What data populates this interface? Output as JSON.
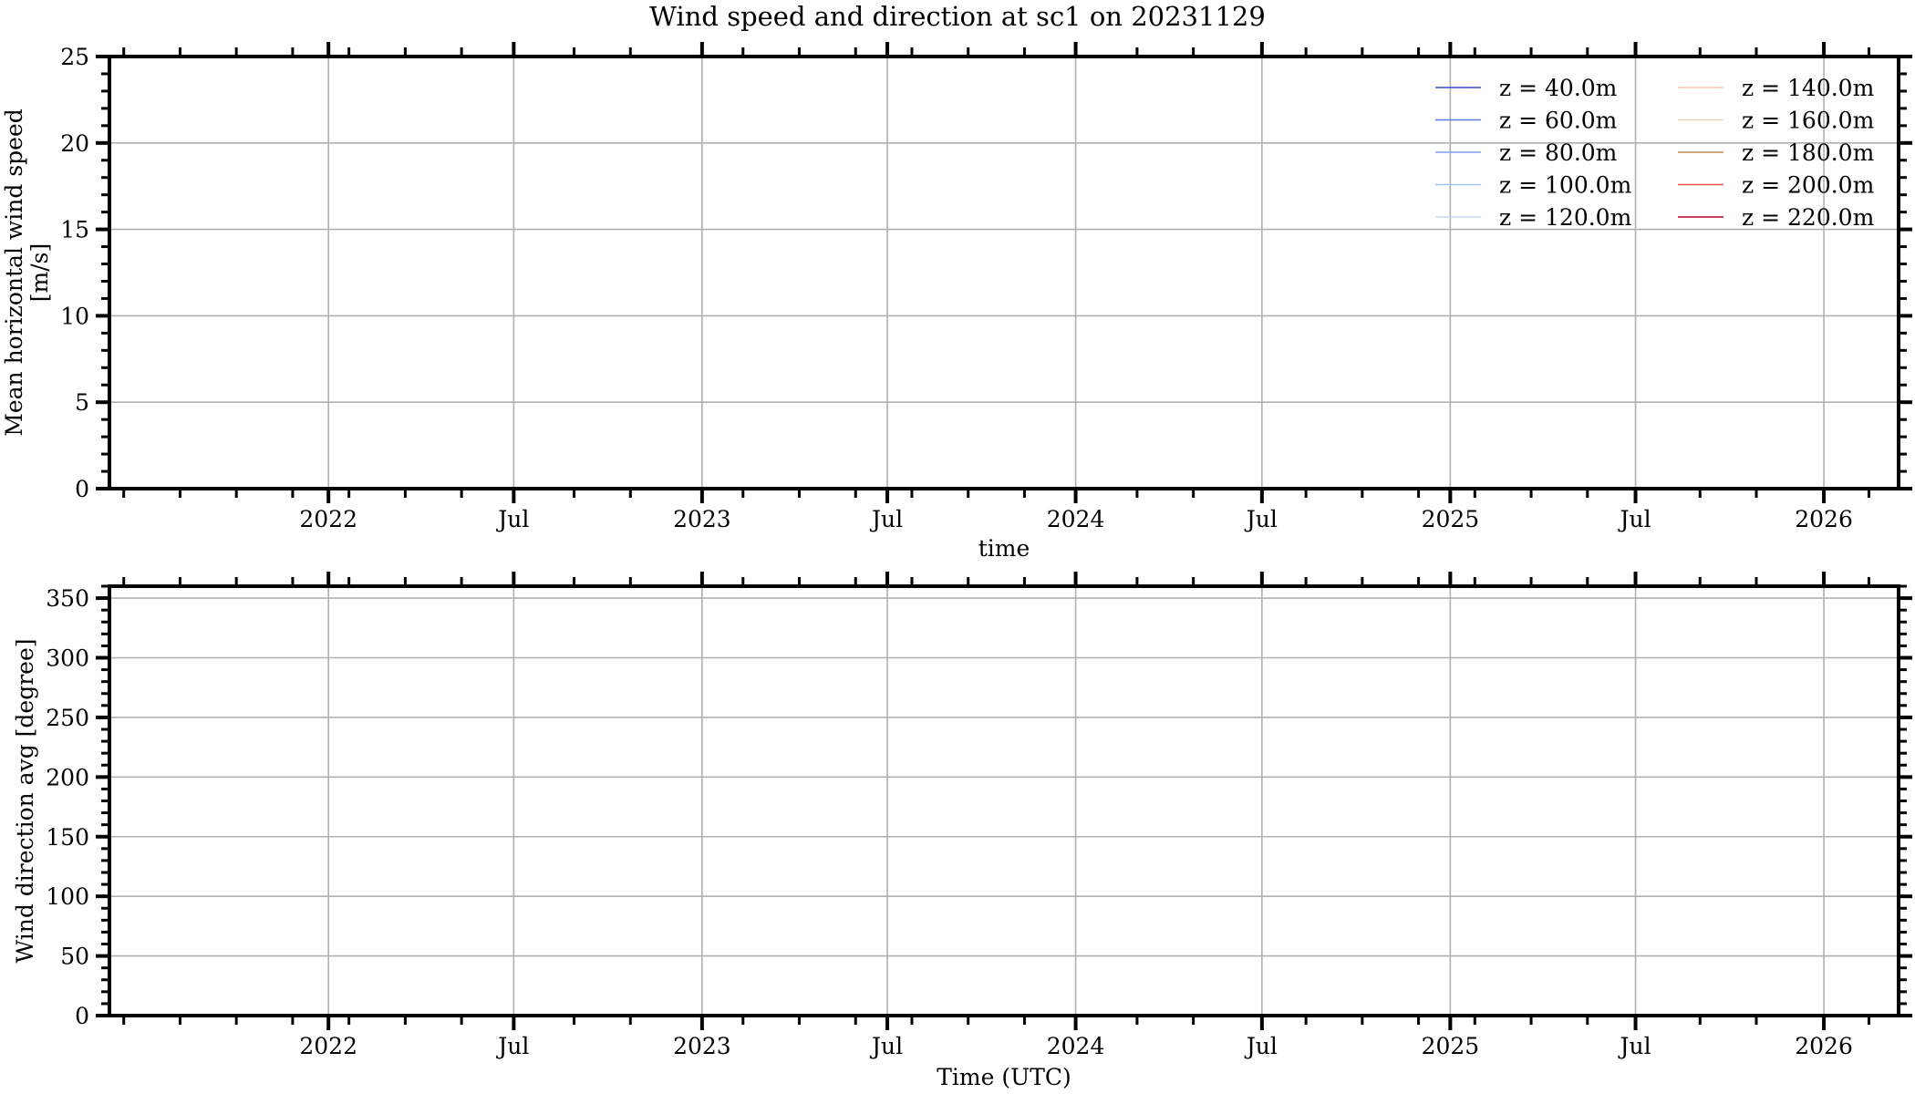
{
  "figure": {
    "title": "Wind speed and direction at sc1 on 20231129"
  },
  "chart_data": [
    {
      "type": "line",
      "xlabel": "time",
      "ylabel": [
        "Mean horizontal wind speed",
        "[m/s]"
      ],
      "xlim": [
        "2021-06-01",
        "2026-03-15"
      ],
      "ylim": [
        0,
        25
      ],
      "x_ticks": [
        {
          "date": "2022-01-01",
          "label": "2022"
        },
        {
          "date": "2022-07-01",
          "label": "Jul"
        },
        {
          "date": "2023-01-01",
          "label": "2023"
        },
        {
          "date": "2023-07-01",
          "label": "Jul"
        },
        {
          "date": "2024-01-01",
          "label": "2024"
        },
        {
          "date": "2024-07-01",
          "label": "Jul"
        },
        {
          "date": "2025-01-01",
          "label": "2025"
        },
        {
          "date": "2025-07-01",
          "label": "Jul"
        },
        {
          "date": "2026-01-01",
          "label": "2026"
        }
      ],
      "y_ticks": [
        0,
        5,
        10,
        15,
        20,
        25
      ],
      "y_minor_step": 1,
      "grid": true,
      "legend_position": "top-right",
      "legend_columns": 2,
      "series": [
        {
          "name": "z = 40.0m",
          "color": "#3b4cc0",
          "x": [],
          "y": []
        },
        {
          "name": "z = 60.0m",
          "color": "#5b7ae5",
          "x": [],
          "y": []
        },
        {
          "name": "z = 80.0m",
          "color": "#7ea1f9",
          "x": [],
          "y": []
        },
        {
          "name": "z = 100.0m",
          "color": "#a3c2fe",
          "x": [],
          "y": []
        },
        {
          "name": "z = 120.0m",
          "color": "#c7d7f0",
          "x": [],
          "y": []
        },
        {
          "name": "z = 140.0m",
          "color": "#f2cbb7",
          "x": [],
          "y": []
        },
        {
          "name": "z = 160.0m",
          "color": "#e5d8bd",
          "x": [],
          "y": []
        },
        {
          "name": "z = 180.0m",
          "color": "#c58b4e",
          "x": [],
          "y": []
        },
        {
          "name": "z = 200.0m",
          "color": "#e8574a",
          "x": [],
          "y": []
        },
        {
          "name": "z = 220.0m",
          "color": "#b40426",
          "x": [],
          "y": []
        }
      ]
    },
    {
      "type": "line",
      "xlabel": "Time (UTC)",
      "ylabel": [
        "Wind direction avg [degree]"
      ],
      "xlim": [
        "2021-06-01",
        "2026-03-15"
      ],
      "ylim": [
        0,
        360
      ],
      "x_ticks": [
        {
          "date": "2022-01-01",
          "label": "2022"
        },
        {
          "date": "2022-07-01",
          "label": "Jul"
        },
        {
          "date": "2023-01-01",
          "label": "2023"
        },
        {
          "date": "2023-07-01",
          "label": "Jul"
        },
        {
          "date": "2024-01-01",
          "label": "2024"
        },
        {
          "date": "2024-07-01",
          "label": "Jul"
        },
        {
          "date": "2025-01-01",
          "label": "2025"
        },
        {
          "date": "2025-07-01",
          "label": "Jul"
        },
        {
          "date": "2026-01-01",
          "label": "2026"
        }
      ],
      "y_ticks": [
        0,
        50,
        100,
        150,
        200,
        250,
        300,
        350
      ],
      "y_minor_step": 10,
      "grid": true,
      "series": []
    }
  ]
}
